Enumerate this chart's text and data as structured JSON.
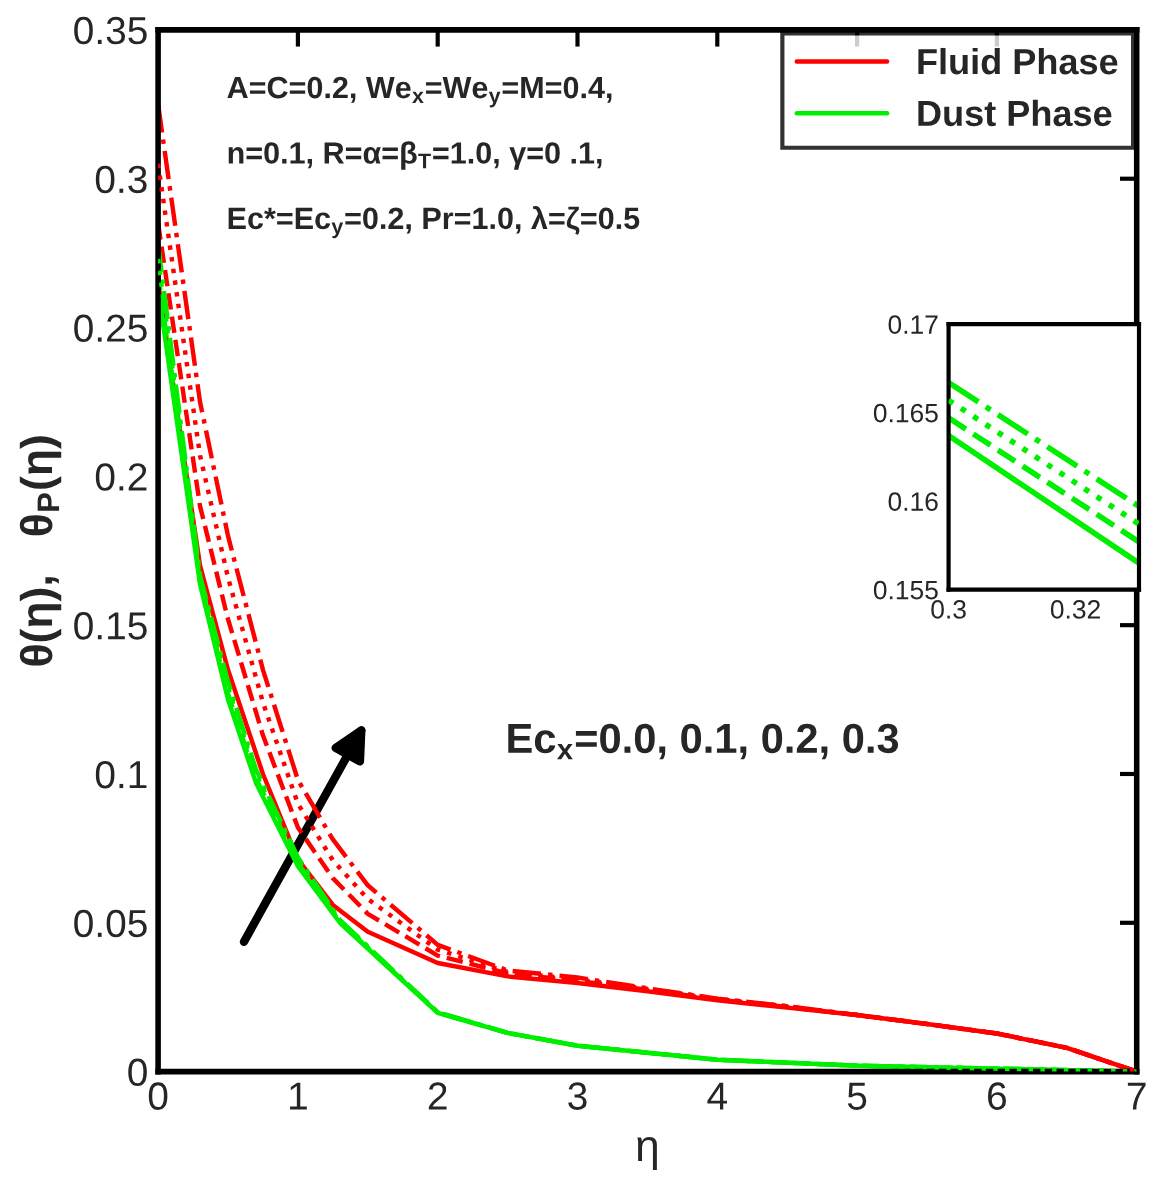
{
  "chart_data": [
    {
      "type": "line",
      "xlabel": "η",
      "ylabel": "θ(η),   θ$_{P}$(η)",
      "xlim": [
        0,
        7
      ],
      "ylim": [
        0,
        0.35
      ],
      "xticks": [
        0,
        1,
        2,
        3,
        4,
        5,
        6,
        7
      ],
      "yticks": [
        0,
        0.05,
        0.1,
        0.15,
        0.2,
        0.25,
        0.3,
        0.35
      ],
      "legend": "top right",
      "annotations": [
        "A=C=0.2, We$_{x}$=We$_{y}$=M=0.4,",
        "n=0.1, R=α=β$_{T}$=1.0, γ=0 .1,",
        "Ec*=Ec$_{y}$=0.2, Pr=1.0, λ=ζ=0.5",
        "Ec$_{x}$=0.0, 0.1, 0.2, 0.3"
      ],
      "series": [
        {
          "name": "Fluid Phase",
          "color": "#ff0000",
          "line_style": "solid",
          "x": [
            0,
            0.3,
            0.5,
            0.75,
            1,
            1.25,
            1.5,
            2,
            2.5,
            3,
            3.5,
            4,
            4.5,
            5,
            5.5,
            6,
            6.5,
            7
          ],
          "values": [
            0.265,
            0.17,
            0.135,
            0.1,
            0.0713,
            0.056,
            0.047,
            0.0365,
            0.032,
            0.0298,
            0.027,
            0.024,
            0.0215,
            0.019,
            0.016,
            0.0128,
            0.008,
            0
          ]
        },
        {
          "color": "#ff0000",
          "line_style": "dashed",
          "x": [
            0,
            0.3,
            0.5,
            0.75,
            1,
            1.25,
            1.5,
            2,
            2.5,
            3,
            3.5,
            4,
            4.5,
            5,
            5.5,
            6,
            6.5,
            7
          ],
          "values": [
            0.285,
            0.19,
            0.152,
            0.113,
            0.082,
            0.065,
            0.053,
            0.039,
            0.033,
            0.0305,
            0.0275,
            0.0242,
            0.0217,
            0.019,
            0.016,
            0.0128,
            0.008,
            0
          ]
        },
        {
          "color": "#ff0000",
          "line_style": "dotted",
          "x": [
            0,
            0.3,
            0.5,
            0.75,
            1,
            1.25,
            1.5,
            2,
            2.5,
            3,
            3.5,
            4,
            4.5,
            5,
            5.5,
            6,
            6.5,
            7
          ],
          "values": [
            0.305,
            0.207,
            0.166,
            0.124,
            0.09,
            0.071,
            0.058,
            0.041,
            0.0335,
            0.031,
            0.0278,
            0.0244,
            0.0219,
            0.019,
            0.016,
            0.0128,
            0.008,
            0
          ]
        },
        {
          "color": "#ff0000",
          "line_style": "dashdot",
          "x": [
            0,
            0.3,
            0.5,
            0.75,
            1,
            1.25,
            1.5,
            2,
            2.5,
            3,
            3.5,
            4,
            4.5,
            5,
            5.5,
            6,
            6.5,
            7
          ],
          "values": [
            0.325,
            0.225,
            0.18,
            0.135,
            0.098,
            0.078,
            0.0626,
            0.0426,
            0.034,
            0.0316,
            0.028,
            0.0245,
            0.022,
            0.019,
            0.016,
            0.0128,
            0.008,
            0
          ]
        },
        {
          "name": "Dust Phase",
          "color": "#00ee00",
          "line_style": "solid",
          "x": [
            0,
            0.3,
            0.5,
            0.7,
            1,
            1.3,
            1.6,
            2,
            2.5,
            3,
            4,
            5,
            6,
            7
          ],
          "values": [
            0.263,
            0.1637,
            0.125,
            0.097,
            0.069,
            0.05,
            0.037,
            0.0197,
            0.013,
            0.0087,
            0.004,
            0.002,
            0.001,
            0
          ]
        },
        {
          "color": "#00ee00",
          "line_style": "dashed",
          "x": [
            0,
            0.3,
            0.5,
            0.7,
            1,
            1.3,
            1.6,
            2,
            2.5,
            3,
            4,
            5,
            6,
            7
          ],
          "values": [
            0.268,
            0.1647,
            0.127,
            0.0985,
            0.07,
            0.0503,
            0.0372,
            0.0198,
            0.013,
            0.0087,
            0.004,
            0.002,
            0.001,
            0
          ]
        },
        {
          "color": "#00ee00",
          "line_style": "dotted",
          "x": [
            0,
            0.3,
            0.5,
            0.7,
            1,
            1.3,
            1.6,
            2,
            2.5,
            3,
            4,
            5,
            6,
            7
          ],
          "values": [
            0.273,
            0.1657,
            0.129,
            0.1,
            0.071,
            0.0506,
            0.0374,
            0.0199,
            0.013,
            0.0087,
            0.004,
            0.002,
            0.001,
            0
          ]
        },
        {
          "color": "#00ee00",
          "line_style": "dashdot",
          "x": [
            0,
            0.3,
            0.5,
            0.7,
            1,
            1.3,
            1.6,
            2,
            2.5,
            3,
            4,
            5,
            6,
            7
          ],
          "values": [
            0.278,
            0.1667,
            0.131,
            0.1015,
            0.072,
            0.051,
            0.0376,
            0.02,
            0.013,
            0.0087,
            0.004,
            0.002,
            0.001,
            0
          ]
        }
      ]
    },
    {
      "type": "line",
      "xlim": [
        0.3,
        0.33
      ],
      "ylim": [
        0.155,
        0.17
      ],
      "xticks": [
        0.3,
        0.32
      ],
      "yticks": [
        0.155,
        0.16,
        0.165,
        0.17
      ],
      "series": [
        {
          "color": "#00ee00",
          "line_style": "solid",
          "x": [
            0.3,
            0.33
          ],
          "values": [
            0.1637,
            0.1565
          ]
        },
        {
          "color": "#00ee00",
          "line_style": "dashed",
          "x": [
            0.3,
            0.33
          ],
          "values": [
            0.1647,
            0.1577
          ]
        },
        {
          "color": "#00ee00",
          "line_style": "dotted",
          "x": [
            0.3,
            0.33
          ],
          "values": [
            0.1657,
            0.1587
          ]
        },
        {
          "color": "#00ee00",
          "line_style": "dashdot",
          "x": [
            0.3,
            0.33
          ],
          "values": [
            0.1667,
            0.1597
          ]
        }
      ]
    }
  ]
}
